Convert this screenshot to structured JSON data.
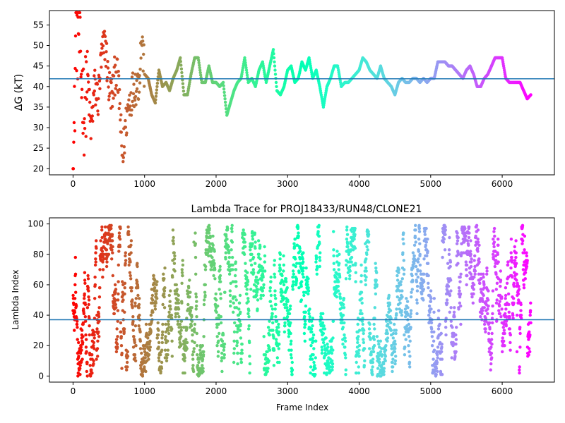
{
  "chart_data": [
    {
      "type": "scatter",
      "title": "",
      "xlabel": "",
      "ylabel": "ΔG (kT)",
      "xlim": [
        -330,
        6730
      ],
      "ylim": [
        18.5,
        58.5
      ],
      "xticks": [
        0,
        1000,
        2000,
        3000,
        4000,
        5000,
        6000
      ],
      "yticks": [
        20,
        25,
        30,
        35,
        40,
        45,
        50,
        55
      ],
      "hline": 41.9,
      "colormap": "rainbow (red at frame 0 → violet at frame 6400)",
      "x_range": [
        0,
        6400
      ],
      "trace_points": [
        [
          0,
          20
        ],
        [
          20,
          31
        ],
        [
          40,
          58
        ],
        [
          60,
          50
        ],
        [
          80,
          55
        ],
        [
          100,
          46
        ],
        [
          130,
          40
        ],
        [
          160,
          33
        ],
        [
          200,
          44
        ],
        [
          250,
          29
        ],
        [
          300,
          40
        ],
        [
          350,
          37
        ],
        [
          400,
          47
        ],
        [
          450,
          51
        ],
        [
          500,
          40
        ],
        [
          550,
          38
        ],
        [
          600,
          45
        ],
        [
          650,
          37
        ],
        [
          680,
          24
        ],
        [
          700,
          23
        ],
        [
          730,
          30
        ],
        [
          780,
          36
        ],
        [
          850,
          40
        ],
        [
          920,
          41
        ],
        [
          960,
          52
        ],
        [
          1000,
          43
        ],
        [
          1050,
          42
        ],
        [
          1100,
          38
        ],
        [
          1150,
          36
        ],
        [
          1200,
          44
        ],
        [
          1250,
          40
        ],
        [
          1300,
          41
        ],
        [
          1350,
          39
        ],
        [
          1400,
          42
        ],
        [
          1450,
          44
        ],
        [
          1500,
          47
        ],
        [
          1550,
          38
        ],
        [
          1600,
          38
        ],
        [
          1650,
          43
        ],
        [
          1700,
          47
        ],
        [
          1750,
          47
        ],
        [
          1800,
          41
        ],
        [
          1850,
          41
        ],
        [
          1900,
          45
        ],
        [
          1950,
          41
        ],
        [
          2000,
          41
        ],
        [
          2050,
          40
        ],
        [
          2100,
          41
        ],
        [
          2150,
          33
        ],
        [
          2200,
          36
        ],
        [
          2250,
          39
        ],
        [
          2300,
          41
        ],
        [
          2350,
          42
        ],
        [
          2400,
          47
        ],
        [
          2450,
          41
        ],
        [
          2500,
          42
        ],
        [
          2550,
          40
        ],
        [
          2600,
          44
        ],
        [
          2650,
          46
        ],
        [
          2700,
          41
        ],
        [
          2750,
          45
        ],
        [
          2800,
          49
        ],
        [
          2850,
          39
        ],
        [
          2900,
          38
        ],
        [
          2950,
          40
        ],
        [
          3000,
          44
        ],
        [
          3050,
          45
        ],
        [
          3100,
          41
        ],
        [
          3150,
          42
        ],
        [
          3200,
          46
        ],
        [
          3250,
          44
        ],
        [
          3300,
          47
        ],
        [
          3350,
          42
        ],
        [
          3400,
          44
        ],
        [
          3450,
          40
        ],
        [
          3500,
          35
        ],
        [
          3550,
          40
        ],
        [
          3600,
          42
        ],
        [
          3650,
          45
        ],
        [
          3700,
          45
        ],
        [
          3750,
          40
        ],
        [
          3800,
          41
        ],
        [
          3850,
          41
        ],
        [
          3900,
          42
        ],
        [
          3950,
          43
        ],
        [
          4000,
          44
        ],
        [
          4050,
          47
        ],
        [
          4100,
          46
        ],
        [
          4150,
          44
        ],
        [
          4200,
          43
        ],
        [
          4250,
          42
        ],
        [
          4300,
          45
        ],
        [
          4350,
          42
        ],
        [
          4400,
          41
        ],
        [
          4450,
          40
        ],
        [
          4500,
          38
        ],
        [
          4550,
          41
        ],
        [
          4600,
          42
        ],
        [
          4650,
          41
        ],
        [
          4700,
          41
        ],
        [
          4750,
          42
        ],
        [
          4800,
          42
        ],
        [
          4850,
          41
        ],
        [
          4900,
          42
        ],
        [
          4950,
          41
        ],
        [
          5000,
          42
        ],
        [
          5050,
          42
        ],
        [
          5100,
          46
        ],
        [
          5150,
          46
        ],
        [
          5200,
          46
        ],
        [
          5250,
          45
        ],
        [
          5300,
          45
        ],
        [
          5350,
          44
        ],
        [
          5400,
          43
        ],
        [
          5450,
          42
        ],
        [
          5500,
          44
        ],
        [
          5550,
          45
        ],
        [
          5600,
          43
        ],
        [
          5650,
          40
        ],
        [
          5700,
          40
        ],
        [
          5750,
          42
        ],
        [
          5800,
          43
        ],
        [
          5850,
          45
        ],
        [
          5900,
          47
        ],
        [
          5950,
          47
        ],
        [
          6000,
          47
        ],
        [
          6050,
          42
        ],
        [
          6100,
          41
        ],
        [
          6150,
          41
        ],
        [
          6200,
          41
        ],
        [
          6250,
          41
        ],
        [
          6300,
          39
        ],
        [
          6350,
          37
        ],
        [
          6400,
          38
        ]
      ]
    },
    {
      "type": "scatter",
      "title": "Lambda Trace for PROJ18433/RUN48/CLONE21",
      "xlabel": "Frame Index",
      "ylabel": "Lambda Index",
      "xlim": [
        -330,
        6730
      ],
      "ylim": [
        -4,
        104
      ],
      "xticks": [
        0,
        1000,
        2000,
        3000,
        4000,
        5000,
        6000
      ],
      "yticks": [
        0,
        20,
        40,
        60,
        80,
        100
      ],
      "hline": 37,
      "colormap": "rainbow (red at frame 0 → violet at frame 6400)",
      "x_range": [
        0,
        6400
      ],
      "lambda_range": [
        0,
        99
      ]
    }
  ],
  "colors": {
    "hline": "#1f77b4",
    "axes": "#000000"
  }
}
